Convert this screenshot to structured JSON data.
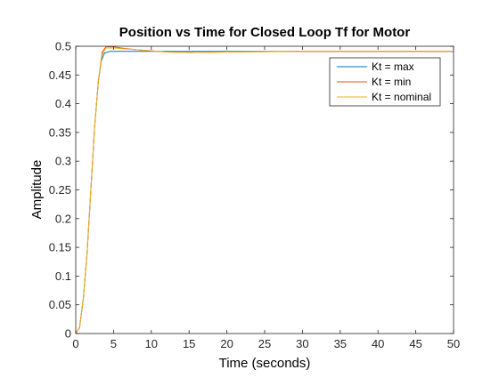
{
  "chart_data": {
    "type": "line",
    "title": "Position vs Time for Closed Loop Tf for Motor",
    "xlabel": "Time (seconds)",
    "ylabel": "Amplitude",
    "xlim": [
      0,
      50
    ],
    "ylim": [
      0,
      0.5
    ],
    "x_ticks": [
      "0",
      "5",
      "10",
      "15",
      "20",
      "25",
      "30",
      "35",
      "40",
      "45",
      "50"
    ],
    "y_ticks": [
      "0",
      "0.05",
      "0.1",
      "0.15",
      "0.2",
      "0.25",
      "0.3",
      "0.35",
      "0.4",
      "0.45",
      "0.5"
    ],
    "grid": false,
    "legend_position": "top-right",
    "series": [
      {
        "name": "Kt = max",
        "color": "#0072BD",
        "x": [
          0,
          0.5,
          1,
          1.5,
          2,
          2.5,
          3,
          3.4,
          3.8,
          4.5,
          6,
          8,
          10,
          13,
          20,
          30,
          40,
          50
        ],
        "y": [
          0,
          0.01,
          0.06,
          0.14,
          0.25,
          0.36,
          0.44,
          0.475,
          0.488,
          0.491,
          0.491,
          0.491,
          0.491,
          0.491,
          0.491,
          0.491,
          0.491,
          0.491
        ]
      },
      {
        "name": "Kt = min",
        "color": "#D95319",
        "x": [
          0,
          0.5,
          1,
          1.5,
          2,
          2.5,
          3,
          3.5,
          4,
          5,
          6,
          8,
          10,
          12,
          15,
          18,
          20,
          25,
          30,
          35,
          40,
          45,
          50
        ],
        "y": [
          0,
          0.01,
          0.06,
          0.14,
          0.25,
          0.36,
          0.44,
          0.49,
          0.499,
          0.499,
          0.497,
          0.494,
          0.492,
          0.49,
          0.489,
          0.4895,
          0.49,
          0.4905,
          0.491,
          0.491,
          0.491,
          0.491,
          0.491
        ]
      },
      {
        "name": "Kt = nominal",
        "color": "#EDB120",
        "x": [
          0,
          0.5,
          1,
          1.5,
          2,
          2.5,
          3,
          3.5,
          4,
          5,
          6,
          8,
          10,
          12,
          15,
          18,
          20,
          25,
          30,
          35,
          40,
          45,
          50
        ],
        "y": [
          0,
          0.01,
          0.06,
          0.14,
          0.25,
          0.36,
          0.44,
          0.485,
          0.497,
          0.497,
          0.496,
          0.494,
          0.492,
          0.49,
          0.489,
          0.4895,
          0.49,
          0.4905,
          0.491,
          0.491,
          0.491,
          0.491,
          0.491
        ]
      }
    ]
  }
}
